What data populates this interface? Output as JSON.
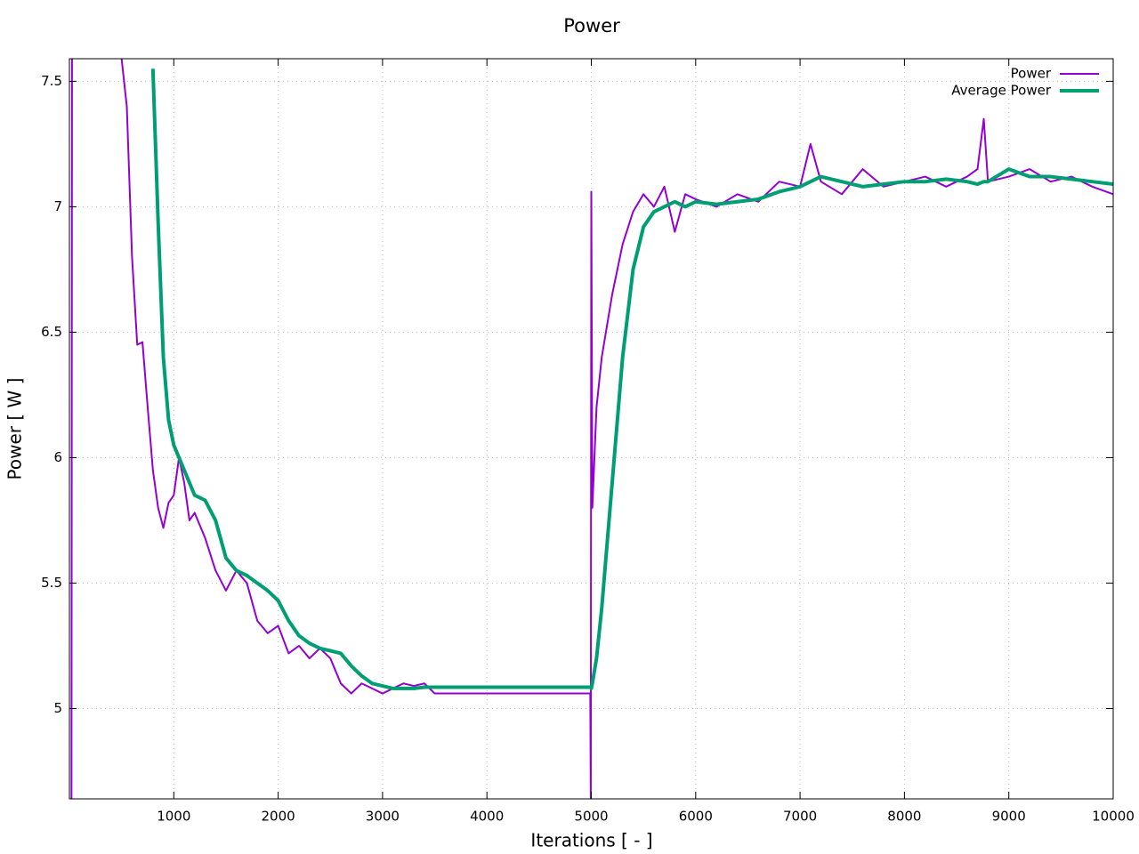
{
  "chart_data": {
    "type": "line",
    "title": "Power",
    "x_label": "Iterations [ - ]",
    "y_label": "Power [ W ]",
    "x": [
      20,
      25,
      30,
      500,
      550,
      600,
      650,
      700,
      750,
      800,
      850,
      900,
      950,
      1000,
      1050,
      1100,
      1150,
      1200,
      1300,
      1400,
      1500,
      1600,
      1700,
      1800,
      1900,
      2000,
      2100,
      2200,
      2300,
      2400,
      2500,
      2600,
      2700,
      2800,
      2900,
      3000,
      3100,
      3200,
      3300,
      3400,
      3500,
      4000,
      4990,
      4995,
      5000,
      5010,
      5050,
      5100,
      5200,
      5300,
      5400,
      5500,
      5600,
      5700,
      5800,
      5900,
      6000,
      6200,
      6400,
      6600,
      6800,
      7000,
      7100,
      7200,
      7400,
      7600,
      7800,
      8000,
      8200,
      8400,
      8600,
      8700,
      8760,
      8800,
      9000,
      9200,
      9400,
      9600,
      9800,
      10000
    ],
    "series": [
      {
        "name": "Power",
        "color": "#9400d3",
        "width": 2,
        "values": [
          4.64,
          7.59,
          null,
          7.59,
          7.4,
          6.8,
          6.45,
          6.46,
          6.2,
          5.95,
          5.8,
          5.72,
          5.82,
          5.85,
          6.0,
          5.9,
          5.75,
          5.78,
          5.68,
          5.55,
          5.47,
          5.55,
          5.5,
          5.35,
          5.3,
          5.33,
          5.22,
          5.25,
          5.2,
          5.24,
          5.2,
          5.1,
          5.06,
          5.1,
          5.08,
          5.06,
          5.08,
          5.1,
          5.09,
          5.1,
          5.06,
          5.06,
          5.06,
          4.64,
          7.06,
          5.8,
          6.2,
          6.4,
          6.65,
          6.85,
          6.98,
          7.05,
          7.0,
          7.08,
          6.9,
          7.05,
          7.03,
          7.0,
          7.05,
          7.02,
          7.1,
          7.08,
          7.25,
          7.1,
          7.05,
          7.15,
          7.08,
          7.1,
          7.12,
          7.08,
          7.12,
          7.15,
          7.35,
          7.1,
          7.12,
          7.15,
          7.1,
          7.12,
          7.08,
          7.05
        ]
      },
      {
        "name": "Average Power",
        "color": "#009e73",
        "width": 4,
        "values": [
          null,
          null,
          null,
          null,
          null,
          null,
          null,
          null,
          null,
          7.55,
          6.94,
          6.4,
          6.15,
          6.05,
          6.0,
          5.95,
          5.9,
          5.85,
          5.83,
          5.75,
          5.6,
          5.55,
          5.53,
          5.5,
          5.47,
          5.43,
          5.35,
          5.29,
          5.26,
          5.24,
          5.23,
          5.22,
          5.17,
          5.13,
          5.1,
          5.09,
          5.08,
          5.08,
          5.08,
          5.085,
          5.085,
          5.085,
          5.085,
          5.085,
          5.08,
          5.1,
          5.2,
          5.4,
          5.9,
          6.4,
          6.75,
          6.92,
          6.98,
          7.0,
          7.02,
          7.0,
          7.02,
          7.01,
          7.02,
          7.03,
          7.06,
          7.08,
          7.1,
          7.12,
          7.1,
          7.08,
          7.09,
          7.1,
          7.1,
          7.11,
          7.1,
          7.09,
          7.1,
          7.1,
          7.15,
          7.12,
          7.12,
          7.11,
          7.1,
          7.09
        ]
      }
    ],
    "xlim": [
      0,
      10000
    ],
    "xticks": [
      1000,
      2000,
      3000,
      4000,
      5000,
      6000,
      7000,
      8000,
      9000,
      10000
    ],
    "ylim": [
      4.64,
      7.59
    ],
    "yticks": [
      5,
      5.5,
      6,
      6.5,
      7,
      7.5
    ],
    "grid": true,
    "legend": "top-right"
  }
}
